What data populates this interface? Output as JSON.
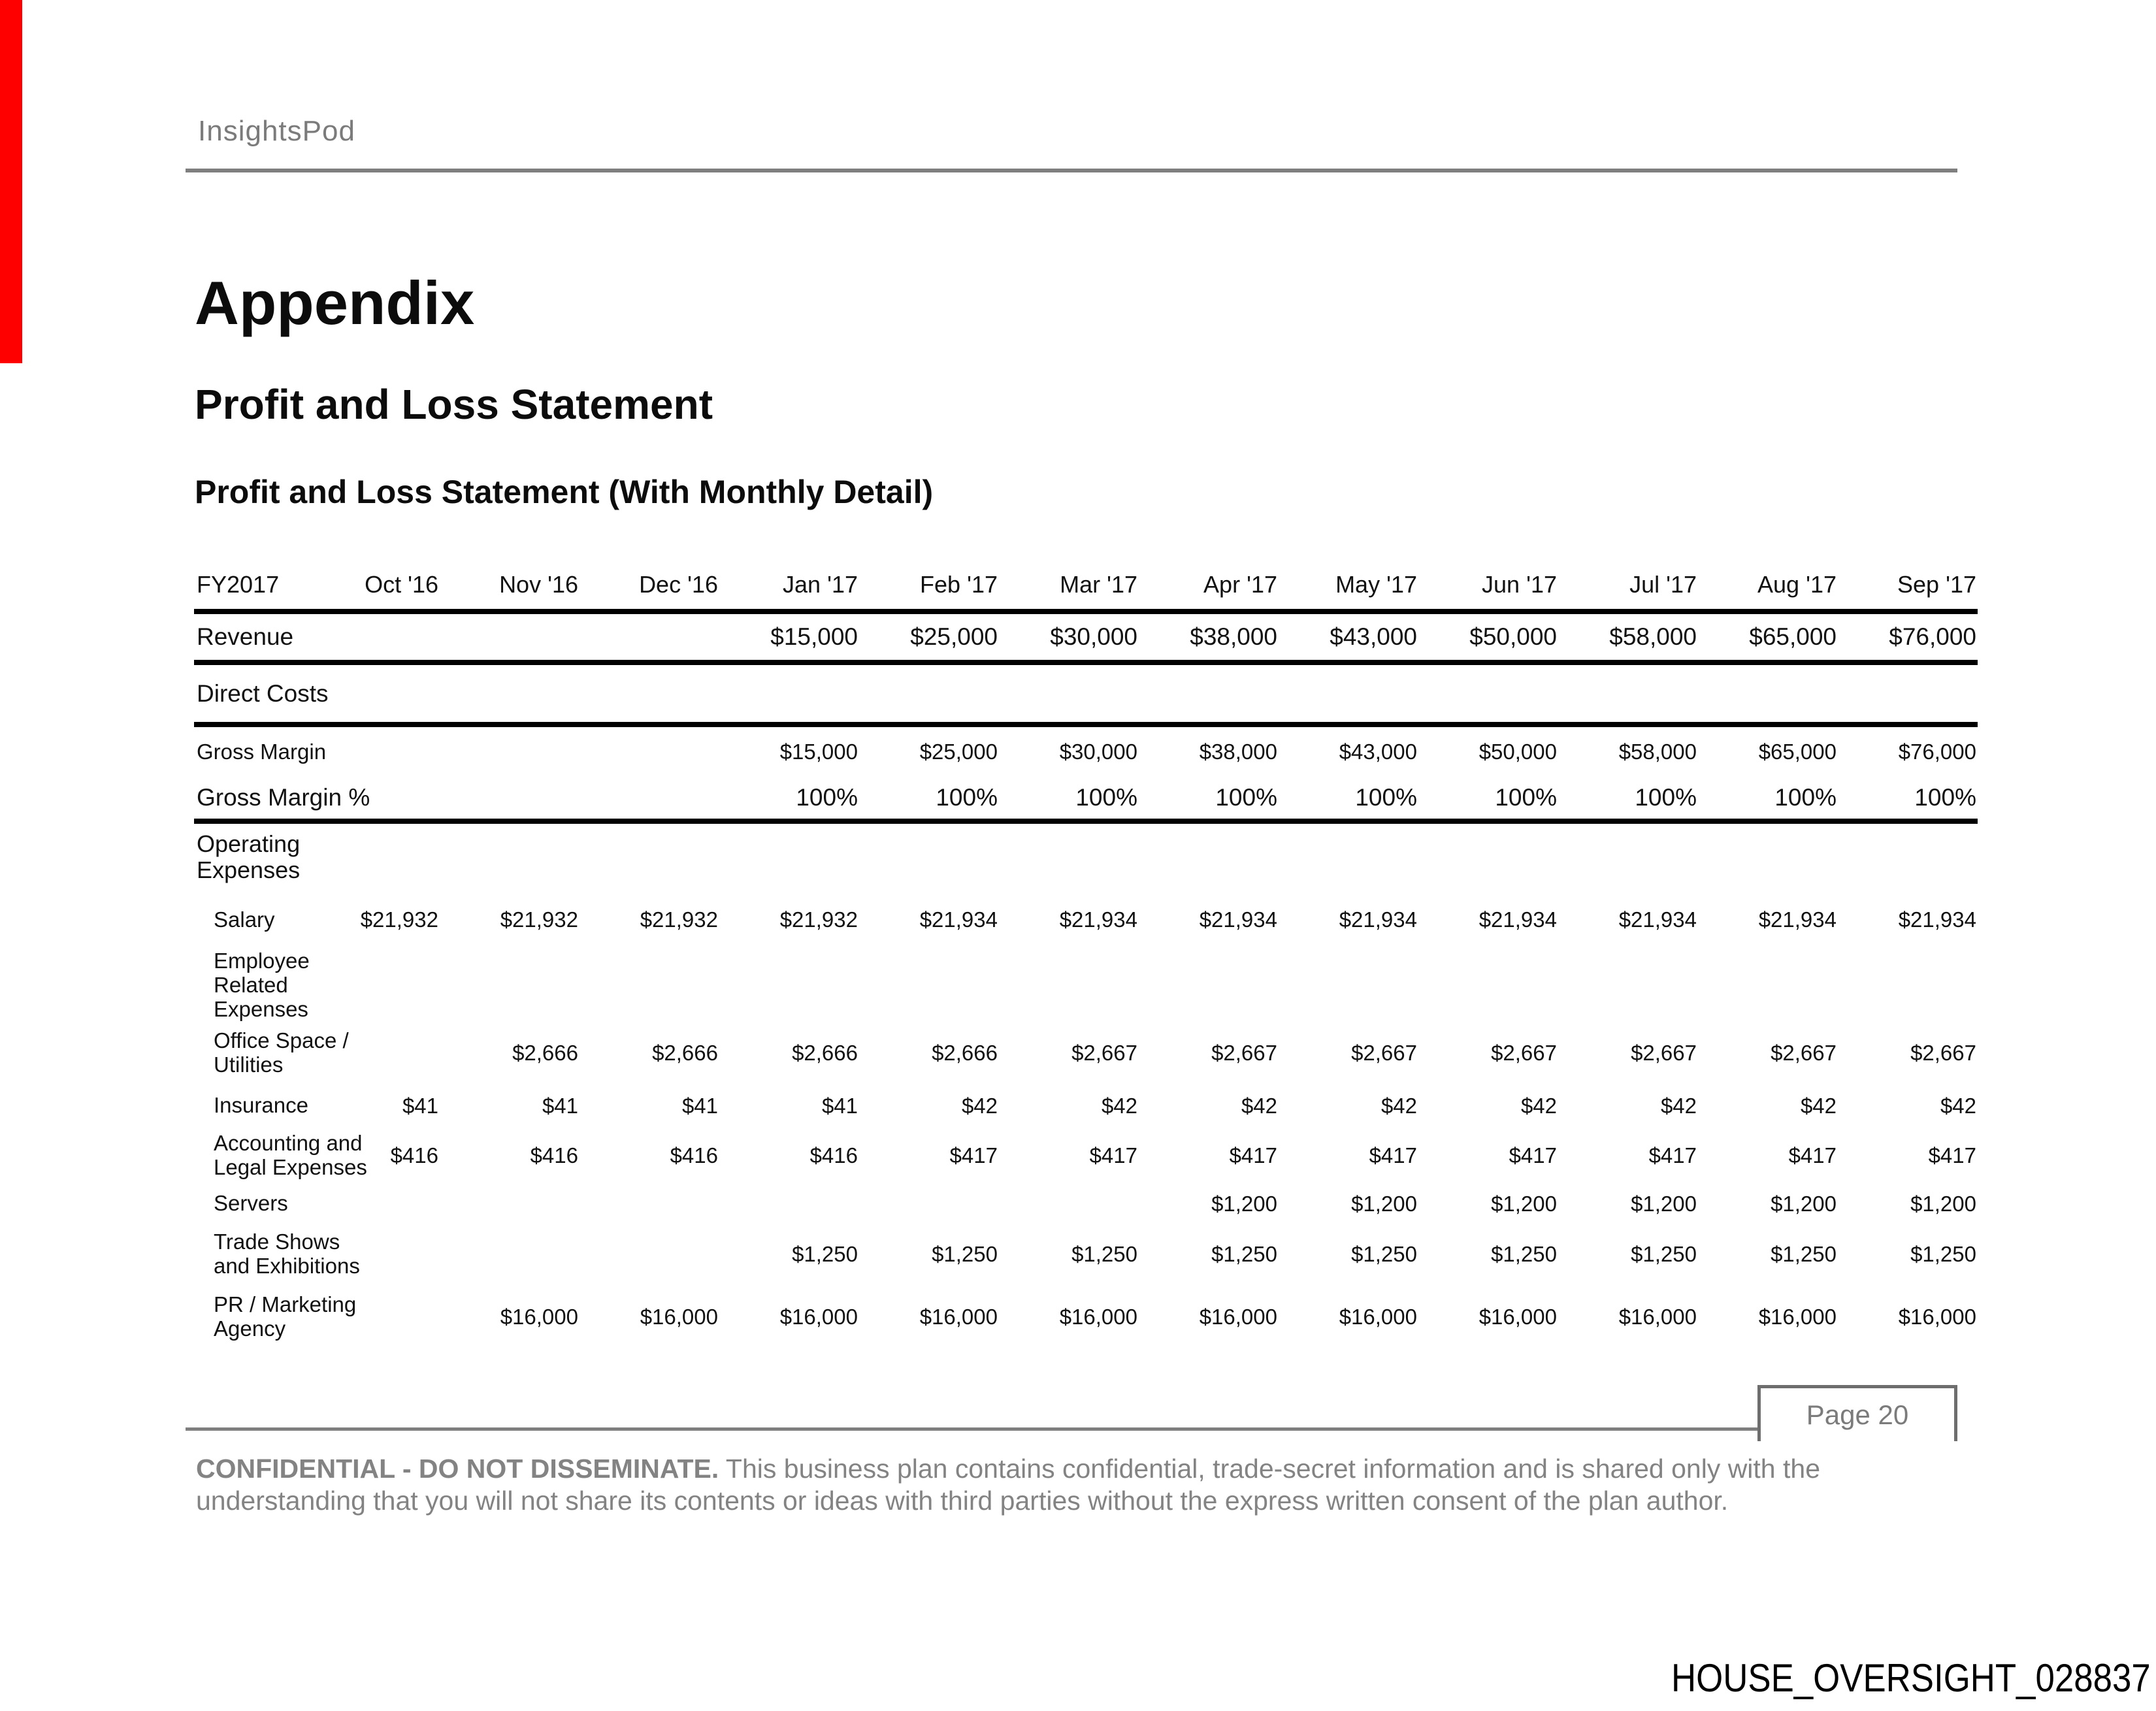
{
  "page": {
    "brand": "InsightsPod",
    "title": "Appendix",
    "section_title": "Profit and Loss Statement",
    "subsection_title": "Profit and Loss Statement (With Monthly Detail)",
    "colors": {
      "accent_red": "#ff0000",
      "rule_gray": "#7f7f7f",
      "text_gray": "#838383",
      "text_black": "#111111"
    },
    "footer": {
      "page_label": "Page 20",
      "disclaimer_bold": "CONFIDENTIAL - DO NOT DISSEMINATE.",
      "disclaimer_rest": " This business plan contains confidential, trade-secret information and is shared only with the understanding that you will not share its contents or ideas with third parties without the express written consent of the plan author.",
      "exhibit_number": "HOUSE_OVERSIGHT_028837"
    }
  },
  "table": {
    "fiscal_label": "FY2017",
    "columns": [
      "Oct '16",
      "Nov '16",
      "Dec '16",
      "Jan '17",
      "Feb '17",
      "Mar '17",
      "Apr '17",
      "May '17",
      "Jun '17",
      "Jul '17",
      "Aug '17",
      "Sep '17"
    ],
    "rows": [
      {
        "id": "revenue",
        "label_lines": [
          "Revenue"
        ],
        "weight": "b",
        "size": "L",
        "indent": false,
        "rule_below": true,
        "height": "h78",
        "values": [
          "",
          "",
          "",
          "$15,000",
          "$25,000",
          "$30,000",
          "$38,000",
          "$43,000",
          "$50,000",
          "$58,000",
          "$65,000",
          "$76,000"
        ]
      },
      {
        "id": "direct-costs",
        "label_lines": [
          "Direct Costs"
        ],
        "weight": "b",
        "size": "L",
        "indent": false,
        "rule_below": true,
        "height": "h95",
        "values": [
          "",
          "",
          "",
          "",
          "",
          "",
          "",
          "",
          "",
          "",
          "",
          ""
        ]
      },
      {
        "id": "gross-margin",
        "label_lines": [
          "Gross Margin"
        ],
        "weight": "r",
        "size": "S",
        "indent": false,
        "rule_below": false,
        "height": "h80",
        "values": [
          "",
          "",
          "",
          "$15,000",
          "$25,000",
          "$30,000",
          "$38,000",
          "$43,000",
          "$50,000",
          "$58,000",
          "$65,000",
          "$76,000"
        ]
      },
      {
        "id": "gross-margin-pct",
        "label_lines": [
          "Gross Margin %"
        ],
        "weight": "b",
        "size": "L",
        "indent": false,
        "rule_below": true,
        "height": "h68",
        "values": [
          "",
          "",
          "",
          "100%",
          "100%",
          "100%",
          "100%",
          "100%",
          "100%",
          "100%",
          "100%",
          "100%"
        ]
      },
      {
        "id": "operating-expenses",
        "label_lines": [
          "Operating",
          "Expenses"
        ],
        "weight": "b",
        "size": "M",
        "indent": false,
        "rule_below": false,
        "height": "h106",
        "values": [
          "",
          "",
          "",
          "",
          "",
          "",
          "",
          "",
          "",
          "",
          "",
          ""
        ]
      },
      {
        "id": "salary",
        "label_lines": [
          "Salary"
        ],
        "weight": "r",
        "size": "S",
        "indent": true,
        "rule_below": false,
        "height": "h90",
        "values": [
          "$21,932",
          "$21,932",
          "$21,932",
          "$21,932",
          "$21,934",
          "$21,934",
          "$21,934",
          "$21,934",
          "$21,934",
          "$21,934",
          "$21,934",
          "$21,934"
        ]
      },
      {
        "id": "employee-related-expenses",
        "label_lines": [
          "Employee",
          "Related",
          "Expenses"
        ],
        "weight": "r",
        "size": "S",
        "indent": true,
        "rule_below": false,
        "height": "h108",
        "values": [
          "",
          "",
          "",
          "",
          "",
          "",
          "",
          "",
          "",
          "",
          "",
          ""
        ]
      },
      {
        "id": "office-space-utilities",
        "label_lines": [
          "Office Space /",
          "Utilities"
        ],
        "weight": "r",
        "size": "S",
        "indent": true,
        "rule_below": false,
        "height": "h96",
        "values": [
          "",
          "$2,666",
          "$2,666",
          "$2,666",
          "$2,666",
          "$2,667",
          "$2,667",
          "$2,667",
          "$2,667",
          "$2,667",
          "$2,667",
          "$2,667"
        ]
      },
      {
        "id": "insurance",
        "label_lines": [
          "Insurance"
        ],
        "weight": "r",
        "size": "S",
        "indent": true,
        "rule_below": false,
        "height": "h66",
        "values": [
          "$41",
          "$41",
          "$41",
          "$41",
          "$42",
          "$42",
          "$42",
          "$42",
          "$42",
          "$42",
          "$42",
          "$42"
        ]
      },
      {
        "id": "accounting-legal-expenses",
        "label_lines": [
          "Accounting and",
          "Legal Expenses"
        ],
        "weight": "r",
        "size": "S",
        "indent": true,
        "rule_below": false,
        "height": "h86",
        "values": [
          "$416",
          "$416",
          "$416",
          "$416",
          "$417",
          "$417",
          "$417",
          "$417",
          "$417",
          "$417",
          "$417",
          "$417"
        ]
      },
      {
        "id": "servers",
        "label_lines": [
          "Servers"
        ],
        "weight": "r",
        "size": "S",
        "indent": true,
        "rule_below": false,
        "height": "h62",
        "values": [
          "",
          "",
          "",
          "",
          "",
          "",
          "$1,200",
          "$1,200",
          "$1,200",
          "$1,200",
          "$1,200",
          "$1,200"
        ]
      },
      {
        "id": "trade-shows-exhibitions",
        "label_lines": [
          "Trade Shows",
          "and Exhibitions"
        ],
        "weight": "r",
        "size": "S",
        "indent": true,
        "rule_below": false,
        "height": "h92",
        "values": [
          "",
          "",
          "",
          "$1,250",
          "$1,250",
          "$1,250",
          "$1,250",
          "$1,250",
          "$1,250",
          "$1,250",
          "$1,250",
          "$1,250"
        ]
      },
      {
        "id": "pr-marketing-agency",
        "label_lines": [
          "PR / Marketing",
          "Agency"
        ],
        "weight": "r",
        "size": "S",
        "indent": true,
        "rule_below": false,
        "height": "h100",
        "values": [
          "",
          "$16,000",
          "$16,000",
          "$16,000",
          "$16,000",
          "$16,000",
          "$16,000",
          "$16,000",
          "$16,000",
          "$16,000",
          "$16,000",
          "$16,000"
        ]
      }
    ]
  }
}
